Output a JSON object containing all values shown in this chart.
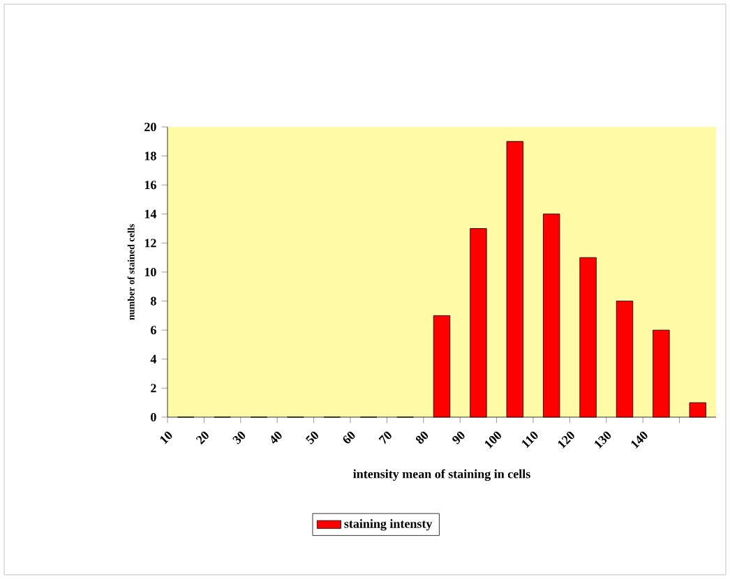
{
  "chart_data": {
    "type": "histogram",
    "xlabel": "intensity mean of staining in cells",
    "ylabel": "number of stained cells",
    "bins": [
      10,
      20,
      30,
      40,
      50,
      60,
      70,
      80,
      90,
      100,
      110,
      120,
      130,
      140,
      150,
      160
    ],
    "series": [
      {
        "name": "staining intensty",
        "color": "#ff0000",
        "values": [
          0,
          0,
          0,
          0,
          0,
          0,
          0,
          7,
          13,
          19,
          14,
          11,
          8,
          6,
          1
        ]
      }
    ],
    "xlim": [
      10,
      160
    ],
    "xticks": [
      10,
      20,
      30,
      40,
      50,
      60,
      70,
      80,
      90,
      100,
      110,
      120,
      130,
      140,
      {
        "value": 150,
        "label": null
      }
    ],
    "ylim": [
      0,
      20
    ],
    "yticks": [
      0,
      2,
      4,
      6,
      8,
      10,
      12,
      14,
      16,
      18,
      20
    ],
    "grid": false,
    "legend": "bottom"
  }
}
